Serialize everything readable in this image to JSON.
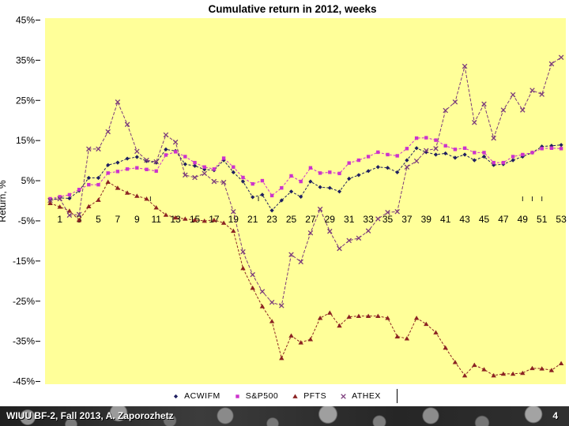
{
  "slide": {
    "title": "Cumulative return in 2012, weeks",
    "footer": {
      "text": "WIUU BF-2, Fall 2013, A. Zaporozhetz",
      "page_number": "4"
    }
  },
  "chart_data": {
    "type": "line",
    "title": "Cumulative return in 2012, weeks",
    "y_axis_title": "Return, %",
    "plot_bg": "#FFFF99",
    "grid": false,
    "legend_position": "bottom",
    "ylim": [
      -47,
      47
    ],
    "y_tick_values": [
      45,
      35,
      25,
      15,
      5,
      -5,
      -15,
      -25,
      -35,
      -45
    ],
    "y_tick_labels": [
      "45%",
      "35%",
      "25%",
      "15%",
      "5%",
      "-5%",
      "-15%",
      "-25%",
      "-35%",
      "-45%"
    ],
    "x_is_weeks_0_to_53": true,
    "x_tick_labels": [
      "1",
      "3",
      "5",
      "7",
      "9",
      "11",
      "13",
      "15",
      "17",
      "19",
      "21",
      "23",
      "25",
      "27",
      "29",
      "31",
      "33",
      "35",
      "37",
      "39",
      "41",
      "43",
      "45",
      "47",
      "49",
      "51",
      "53"
    ],
    "x_tick_weeks": [
      1,
      3,
      5,
      7,
      9,
      11,
      13,
      15,
      17,
      19,
      21,
      23,
      25,
      27,
      29,
      31,
      33,
      35,
      37,
      39,
      41,
      43,
      45,
      47,
      49,
      51,
      53
    ],
    "stray_axis_tick_weeks": [
      10.4,
      21.6,
      49,
      50,
      51
    ],
    "series": [
      {
        "name": "ACWIFM",
        "color": "#1f1f60",
        "marker": "diamond",
        "dash": "3 2",
        "values": [
          0.2,
          0.7,
          0.6,
          2.5,
          5.7,
          5.7,
          8.9,
          9.5,
          10.5,
          10.9,
          9.9,
          9.5,
          12.8,
          12.4,
          9.1,
          8.7,
          7.8,
          7.6,
          10.1,
          7.1,
          4.8,
          0.9,
          1.5,
          -2.4,
          0.1,
          2.3,
          1.0,
          4.8,
          3.4,
          3.2,
          2.3,
          5.5,
          6.4,
          7.4,
          8.4,
          8.2,
          7.1,
          10.1,
          13.1,
          12.1,
          11.5,
          11.8,
          10.7,
          11.5,
          10.1,
          11.0,
          8.9,
          9.1,
          10.1,
          11.0,
          12.0,
          13.5,
          13.7,
          13.9
        ]
      },
      {
        "name": "S&P500",
        "color": "#cc33cc",
        "marker": "square",
        "dash": "3 2",
        "values": [
          0.5,
          1.0,
          1.5,
          2.8,
          4.0,
          4.0,
          6.9,
          7.3,
          7.9,
          8.2,
          7.8,
          7.4,
          11.4,
          12.2,
          11.0,
          9.5,
          8.4,
          7.9,
          10.6,
          8.4,
          5.8,
          4.2,
          5.0,
          1.3,
          3.2,
          6.2,
          4.8,
          8.2,
          6.9,
          7.1,
          6.8,
          9.4,
          10.1,
          11.0,
          12.1,
          11.5,
          11.2,
          13.0,
          15.6,
          15.7,
          15.1,
          13.7,
          12.8,
          13.1,
          12.0,
          12.0,
          9.5,
          9.5,
          11.0,
          11.5,
          12.0,
          13.0,
          13.1,
          13.0
        ]
      },
      {
        "name": "PFTS",
        "color": "#8b2323",
        "marker": "triangle",
        "dash": "3 2",
        "values": [
          -0.6,
          -1.5,
          -2.5,
          -4.8,
          -1.4,
          0.2,
          4.7,
          3.2,
          2.0,
          1.2,
          0.5,
          -1.7,
          -3.5,
          -4.2,
          -4.5,
          -4.8,
          -5.0,
          -4.8,
          -5.5,
          -7.5,
          -16.8,
          -21.7,
          -26.3,
          -30.0,
          -39.2,
          -33.6,
          -35.3,
          -34.5,
          -29.2,
          -27.9,
          -31.1,
          -28.9,
          -28.7,
          -28.7,
          -28.7,
          -29.2,
          -33.8,
          -34.3,
          -29.2,
          -30.7,
          -32.8,
          -36.6,
          -40.2,
          -43.5,
          -40.9,
          -42.0,
          -43.5,
          -43.1,
          -43.1,
          -42.9,
          -41.7,
          -41.8,
          -42.2,
          -40.5
        ]
      },
      {
        "name": "ATHEX",
        "color": "#7b3b7b",
        "marker": "x",
        "dash": "4 2",
        "values": [
          0.1,
          0.5,
          -3.6,
          -3.4,
          12.9,
          12.9,
          17.2,
          24.6,
          19.0,
          12.3,
          10.1,
          9.7,
          16.4,
          14.6,
          6.4,
          5.8,
          6.8,
          4.8,
          4.6,
          -2.7,
          -12.7,
          -18.4,
          -22.6,
          -25.3,
          -26.1,
          -13.4,
          -15.2,
          -8.0,
          -2.1,
          -7.6,
          -11.9,
          -9.9,
          -9.3,
          -7.5,
          -4.5,
          -2.9,
          -2.7,
          8.4,
          9.9,
          12.5,
          13.0,
          22.5,
          24.6,
          33.5,
          19.5,
          24.1,
          15.6,
          22.6,
          26.4,
          22.6,
          27.5,
          26.5,
          34.1,
          35.7
        ]
      }
    ]
  },
  "layout_colors": {
    "axis_text": "#000000",
    "footer_bar": "#2e2e2e"
  }
}
